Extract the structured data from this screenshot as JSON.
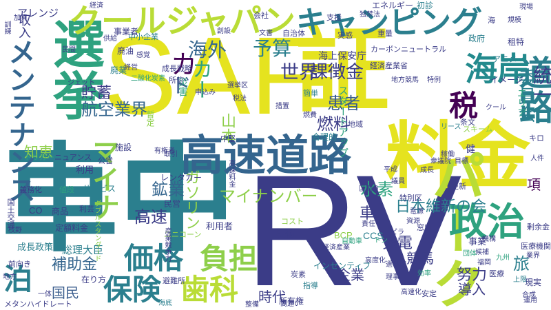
{
  "palette": {
    "navy": "#3b3c87",
    "darkblue": "#434b8a",
    "indigo": "#424c8c",
    "blue": "#3a5d8d",
    "steel": "#34658e",
    "teal": "#2b7f8e",
    "cyan": "#238a8d",
    "green": "#2ea27f",
    "lightgreen": "#4fb56f",
    "lime": "#8ecf4a",
    "yellowgreen": "#b9dc36",
    "yellow": "#e5e31f",
    "purple": "#472a78",
    "deeppurple": "#440154"
  },
  "words": [
    {
      "text": "SAF",
      "color": "#e5e31f"
    },
    {
      "text": "RV",
      "color": "#3b3c87"
    },
    {
      "text": "車中",
      "color": "#2b7f8e"
    },
    {
      "text": "証",
      "color": "#e5e31f"
    },
    {
      "text": "料金",
      "color": "#e5e31f"
    },
    {
      "text": "高速道路",
      "color": "#34658e"
    },
    {
      "text": "選挙",
      "color": "#2ea27f"
    },
    {
      "text": "クールジャパン",
      "color": "#b9dc36"
    },
    {
      "text": "キャンピング",
      "color": "#2b7f8e"
    },
    {
      "text": "パーク",
      "color": "#b9dc36"
    },
    {
      "text": "道路",
      "color": "#2b7f8e"
    },
    {
      "text": "海岸",
      "color": "#238a8d"
    },
    {
      "text": "政治",
      "color": "#2ea27f"
    },
    {
      "text": "価格",
      "color": "#2b7f8e"
    },
    {
      "text": "負担",
      "color": "#8ecf4a"
    },
    {
      "text": "保険",
      "color": "#2b7f8e"
    },
    {
      "text": "歯科",
      "color": "#b9dc36"
    },
    {
      "text": "泊",
      "color": "#2b7f8e"
    },
    {
      "text": "マイナ",
      "color": "#8ecf4a"
    },
    {
      "text": "メンテナンス",
      "color": "#34658e"
    },
    {
      "text": "税",
      "color": "#440154"
    },
    {
      "text": "カ",
      "color": "#440154"
    },
    {
      "text": "カー",
      "color": "#2ea27f"
    },
    {
      "text": "ド",
      "color": "#3a5d8d"
    },
    {
      "text": "航空業界",
      "color": "#34658e"
    },
    {
      "text": "貯蓄",
      "color": "#3b3c87"
    },
    {
      "text": "世界",
      "color": "#3b3c87"
    },
    {
      "text": "予算",
      "color": "#2b7f8e"
    },
    {
      "text": "海外",
      "color": "#34658e"
    },
    {
      "text": "課徴金",
      "color": "#3b3c87"
    },
    {
      "text": "患者",
      "color": "#3a5d8d"
    },
    {
      "text": "燃料",
      "color": "#3b3c87"
    },
    {
      "text": "統一",
      "color": "#3b3c87"
    },
    {
      "text": "山本",
      "color": "#8ecf4a"
    },
    {
      "text": "知恵",
      "color": "#8ecf4a"
    },
    {
      "text": "鉱業",
      "color": "#34658e"
    },
    {
      "text": "水素",
      "color": "#2ea27f"
    },
    {
      "text": "マイナンバー",
      "color": "#8ecf4a"
    },
    {
      "text": "ガソリン",
      "color": "#8ecf4a"
    },
    {
      "text": "日本維新の会",
      "color": "#2b7f8e"
    },
    {
      "text": "委員会",
      "color": "#2b7f8e"
    },
    {
      "text": "補助金",
      "color": "#34658e"
    },
    {
      "text": "高速",
      "color": "#3b3c87"
    },
    {
      "text": "車",
      "color": "#3b3c87"
    },
    {
      "text": "国民",
      "color": "#3a5d8d"
    },
    {
      "text": "企業",
      "color": "#3b3c87"
    },
    {
      "text": "競馬",
      "color": "#3b3c87"
    },
    {
      "text": "充電",
      "color": "#3b3c87"
    },
    {
      "text": "努力",
      "color": "#3b3c87"
    },
    {
      "text": "旅",
      "color": "#2b7f8e"
    },
    {
      "text": "項",
      "color": "#440154"
    },
    {
      "text": "導入",
      "color": "#3b3c87"
    },
    {
      "text": "時代",
      "color": "#3b3c87"
    },
    {
      "text": "アレンジ",
      "color": "#3b3c87"
    },
    {
      "text": "収入",
      "color": "#3b3c87"
    },
    {
      "text": "エネルギー",
      "color": "#3b3c87"
    },
    {
      "text": "初診",
      "color": "#2b7f8e"
    },
    {
      "text": "カーボンニュートラル",
      "color": "#3b3c87"
    },
    {
      "text": "海上保安庁",
      "color": "#3b3c87"
    },
    {
      "text": "スタートアップ",
      "color": "#2ea27f"
    },
    {
      "text": "エリア",
      "color": "#2ea27f"
    },
    {
      "text": "アニメ",
      "color": "#2b7f8e"
    },
    {
      "text": "イメージ",
      "color": "#3b3c87"
    },
    {
      "text": "租特",
      "color": "#3b3c87"
    },
    {
      "text": "政府",
      "color": "#2b7f8e"
    },
    {
      "text": "経済産業省",
      "color": "#3b3c87"
    },
    {
      "text": "地方競馬",
      "color": "#3b3c87"
    },
    {
      "text": "特例",
      "color": "#3b3c87"
    },
    {
      "text": "条文",
      "color": "#3b3c87"
    },
    {
      "text": "スキーム",
      "color": "#8ecf4a"
    },
    {
      "text": "キロ",
      "color": "#3b3c87"
    },
    {
      "text": "CCS",
      "color": "#2b7f8e"
    },
    {
      "text": "BCP",
      "color": "#8ecf4a"
    },
    {
      "text": "CO",
      "color": "#3b3c87"
    },
    {
      "text": "インセンティブ",
      "color": "#2b7f8e"
    },
    {
      "text": "経済産業",
      "color": "#3b3c87"
    },
    {
      "text": "技術",
      "color": "#3b3c87"
    },
    {
      "text": "所有権",
      "color": "#3b3c87"
    },
    {
      "text": "総理大臣",
      "color": "#2b7f8e"
    },
    {
      "text": "利用者",
      "color": "#3b3c87"
    },
    {
      "text": "民営",
      "color": "#3b3c87"
    },
    {
      "text": "レンタカー",
      "color": "#3b3c87"
    },
    {
      "text": "コスト",
      "color": "#8ecf4a"
    },
    {
      "text": "ユニコーン",
      "color": "#8ecf4a"
    },
    {
      "text": "成長政策",
      "color": "#2b7f8e"
    },
    {
      "text": "定額料金",
      "color": "#3b3c87"
    },
    {
      "text": "商品",
      "color": "#3b3c87"
    },
    {
      "text": "利芸",
      "color": "#3b3c87"
    },
    {
      "text": "サービス",
      "color": "#2b7f8e"
    },
    {
      "text": "利用",
      "color": "#3b3c87"
    },
    {
      "text": "義務化",
      "color": "#3b3c87"
    },
    {
      "text": "値段",
      "color": "#2ea27f"
    },
    {
      "text": "トリガー",
      "color": "#2ea27f"
    },
    {
      "text": "ニュアンス",
      "color": "#3b3c87"
    },
    {
      "text": "取引",
      "color": "#3b3c87"
    },
    {
      "text": "施設",
      "color": "#3b3c87"
    },
    {
      "text": "公営",
      "color": "#3b3c87"
    },
    {
      "text": "中堅",
      "color": "#3b3c87"
    },
    {
      "text": "合理的",
      "color": "#2b7f8e"
    },
    {
      "text": "地域",
      "color": "#3b3c87"
    },
    {
      "text": "健",
      "color": "#3b3c87"
    },
    {
      "text": "医療",
      "color": "#3b3c87"
    },
    {
      "text": "医療機関",
      "color": "#3b3c87"
    },
    {
      "text": "剰余金",
      "color": "#3b3c87"
    },
    {
      "text": "事業",
      "color": "#3b3c87"
    },
    {
      "text": "窓口",
      "color": "#3b3c87"
    },
    {
      "text": "更新",
      "color": "#3b3c87"
    },
    {
      "text": "特別区",
      "color": "#3b3c87"
    },
    {
      "text": "区割り",
      "color": "#3b3c87"
    },
    {
      "text": "自動車",
      "color": "#2ea27f"
    },
    {
      "text": "安定",
      "color": "#3b3c87"
    },
    {
      "text": "現実",
      "color": "#3b3c87"
    },
    {
      "text": "上限",
      "color": "#2b7f8e"
    },
    {
      "text": "機構",
      "color": "#3b3c87"
    },
    {
      "text": "在り方",
      "color": "#3b3c87"
    },
    {
      "text": "前向き",
      "color": "#3b3c87"
    },
    {
      "text": "地方",
      "color": "#3b3c87"
    },
    {
      "text": "メタンハイドレート",
      "color": "#3b3c87"
    },
    {
      "text": "一体",
      "color": "#3b3c87"
    },
    {
      "text": "海底",
      "color": "#2b7f8e"
    },
    {
      "text": "避難所",
      "color": "#3b3c87"
    },
    {
      "text": "間違い",
      "color": "#3b3c87"
    },
    {
      "text": "炭素",
      "color": "#3b3c87"
    },
    {
      "text": "指導",
      "color": "#2b7f8e"
    },
    {
      "text": "合成",
      "color": "#3b3c87"
    },
    {
      "text": "運用",
      "color": "#3b3c87"
    },
    {
      "text": "中小企業",
      "color": "#2b7f8e"
    },
    {
      "text": "成長戦略",
      "color": "#3b3c87"
    },
    {
      "text": "所信",
      "color": "#3b3c87"
    },
    {
      "text": "災害",
      "color": "#2ea27f"
    },
    {
      "text": "簡単",
      "color": "#2b7f8e"
    },
    {
      "text": "事業者",
      "color": "#3b3c87"
    },
    {
      "text": "廃油",
      "color": "#3b3c87"
    },
    {
      "text": "廃業",
      "color": "#2b7f8e"
    },
    {
      "text": "経営",
      "color": "#3b3c87"
    },
    {
      "text": "感覚",
      "color": "#3b3c87"
    },
    {
      "text": "二酸化炭素",
      "color": "#2ea27f"
    },
    {
      "text": "民間",
      "color": "#3b3c87"
    },
    {
      "text": "ジェット",
      "color": "#3b3c87"
    },
    {
      "text": "会社",
      "color": "#3b3c87"
    },
    {
      "text": "支援",
      "color": "#3b3c87"
    },
    {
      "text": "独禁法",
      "color": "#3b3c87"
    },
    {
      "text": "自治体",
      "color": "#3b3c87"
    },
    {
      "text": "文書",
      "color": "#3b3c87"
    },
    {
      "text": "実感",
      "color": "#3b3c87"
    },
    {
      "text": "重量",
      "color": "#3b3c87"
    },
    {
      "text": "海",
      "color": "#3b3c87"
    },
    {
      "text": "経済",
      "color": "#3b3c87"
    },
    {
      "text": "加算",
      "color": "#3b3c87"
    },
    {
      "text": "訓練",
      "color": "#3b3c87"
    },
    {
      "text": "供給",
      "color": "#3b3c87"
    },
    {
      "text": "現場",
      "color": "#3b3c87"
    },
    {
      "text": "創設",
      "color": "#3b3c87"
    },
    {
      "text": "規模",
      "color": "#3b3c87"
    },
    {
      "text": "クール",
      "color": "#3b3c87"
    },
    {
      "text": "申込み",
      "color": "#3b3c87"
    },
    {
      "text": "税法",
      "color": "#3b3c87"
    },
    {
      "text": "選挙区",
      "color": "#3b3c87"
    },
    {
      "text": "措置",
      "color": "#3b3c87"
    },
    {
      "text": "暫定",
      "color": "#8ecf4a"
    },
    {
      "text": "燃費",
      "color": "#3b3c87"
    },
    {
      "text": "有権者",
      "color": "#3b3c87"
    },
    {
      "text": "効率",
      "color": "#2ea27f"
    },
    {
      "text": "平成",
      "color": "#3b3c87"
    },
    {
      "text": "ダブルスタンダード",
      "color": "#8ecf4a"
    },
    {
      "text": "リース",
      "color": "#2b7f8e"
    },
    {
      "text": "将来",
      "color": "#3b3c87"
    },
    {
      "text": "ピラ",
      "color": "#3b3c87"
    },
    {
      "text": "トン",
      "color": "#2ea27f"
    },
    {
      "text": "責任",
      "color": "#3b3c87"
    },
    {
      "text": "九州",
      "color": "#2ea27f"
    },
    {
      "text": "整備",
      "color": "#3b3c87"
    },
    {
      "text": "福岡",
      "color": "#3b3c87"
    },
    {
      "text": "候補",
      "color": "#3b3c87"
    },
    {
      "text": "人件",
      "color": "#3b3c87"
    },
    {
      "text": "業界",
      "color": "#3b3c87"
    },
    {
      "text": "電源",
      "color": "#3b3c87"
    },
    {
      "text": "高速化",
      "color": "#3b3c87"
    },
    {
      "text": "団体",
      "color": "#2ea27f"
    },
    {
      "text": "選挙権",
      "color": "#3b3c87"
    },
    {
      "text": "産業競争力",
      "color": "#3b3c87"
    },
    {
      "text": "成長",
      "color": "#3b3c87"
    },
    {
      "text": "枝野",
      "color": "#3b3c87"
    },
    {
      "text": "高度化",
      "color": "#3b3c87"
    },
    {
      "text": "議員",
      "color": "#3b3c87"
    },
    {
      "text": "資源",
      "color": "#3b3c87"
    },
    {
      "text": "理事",
      "color": "#3b3c87"
    },
    {
      "text": "国土交通",
      "color": "#3b3c87"
    },
    {
      "text": "衆議院",
      "color": "#3b3c87"
    },
    {
      "text": "稼働",
      "color": "#3b3c87"
    },
    {
      "text": "目標",
      "color": "#3b3c87"
    },
    {
      "text": "高速料金",
      "color": "#3b3c87"
    }
  ]
}
